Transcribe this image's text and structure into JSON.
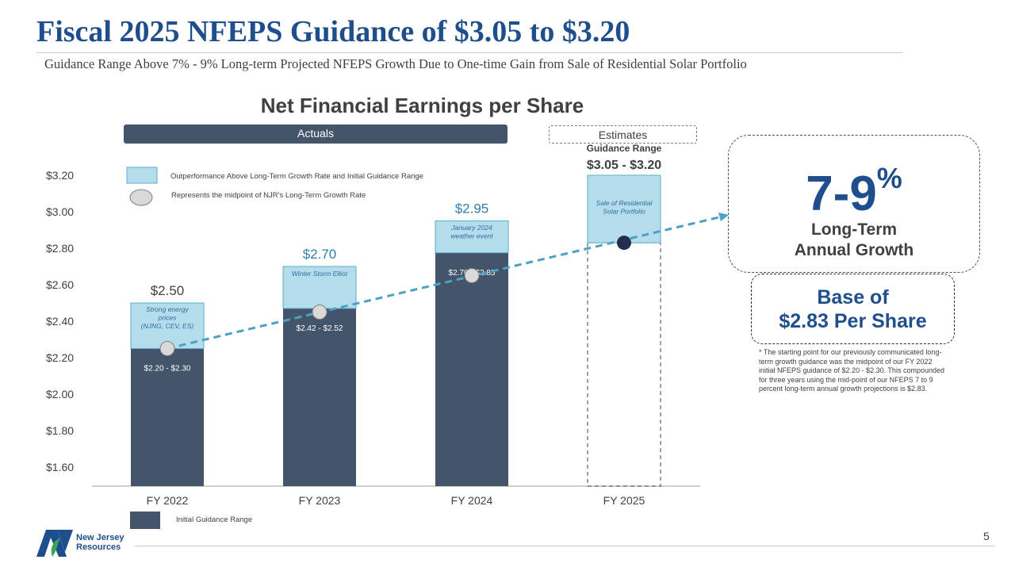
{
  "header": {
    "title": "Fiscal 2025 NFEPS Guidance of $3.05 to $3.20",
    "subtitle": "Guidance Range Above 7% - 9% Long-term Projected NFEPS Growth Due to One-time Gain from Sale of Residential Solar Portfolio"
  },
  "chart_data": {
    "type": "bar",
    "title": "Net Financial Earnings per Share",
    "categories": [
      "FY 2022",
      "FY 2023",
      "FY 2024",
      "FY 2025"
    ],
    "yticks": [
      "$3.20",
      "$3.00",
      "$2.80",
      "$2.60",
      "$2.40",
      "$2.20",
      "$2.00",
      "$1.80",
      "$1.60"
    ],
    "ylim": [
      1.6,
      3.2
    ],
    "period_labels": {
      "actuals": "Actuals",
      "estimates": "Estimates"
    },
    "series": [
      {
        "name": "Initial Guidance Range",
        "values": [
          2.25,
          2.47,
          2.775,
          2.83
        ],
        "range_labels": [
          "$2.20 - $2.30",
          "$2.42 - $2.52",
          "$2.70 - $2.85",
          ""
        ]
      },
      {
        "name": "Outperformance Above Long-Term Growth Rate and Initial Guidance Range",
        "tops": [
          2.5,
          2.7,
          2.95,
          3.2
        ],
        "top_labels": [
          "$2.50",
          "$2.70",
          "$2.95",
          ""
        ],
        "annotations": [
          "Strong energy prices (NJNG, CEV, ES)",
          "Winter Storm Elliot",
          "January 2024 weather event",
          "Sale of Residential Solar Portfolio"
        ]
      },
      {
        "name": "Represents the midpoint of NJR's Long-Term Growth Rate",
        "values": [
          2.25,
          2.45,
          2.65,
          2.83
        ]
      }
    ],
    "guidance": {
      "label": "Guidance Range",
      "value": "$3.05 - $3.20"
    },
    "colors": {
      "bar": "#44546a",
      "outperformance": "#b4dcea",
      "trend": "#4aa3c4",
      "midpoint": "#d9d9d9",
      "fy2025_midpoint": "#1f2f4d"
    }
  },
  "side": {
    "growth_value": "7-9",
    "growth_unit": "%",
    "growth_label_1": "Long-Term",
    "growth_label_2": "Annual Growth",
    "base_line_1": "Base of",
    "base_line_2": "$2.83 Per Share",
    "footnote": "* The starting point for our previously communicated long-term growth guidance was the midpoint of our FY 2022 initial NFEPS guidance of $2.20 - $2.30. This compounded for three years using the mid-point of our NFEPS 7 to 9 percent long-term annual growth projections is $2.83."
  },
  "footer": {
    "page_number": "5",
    "logo_line_1": "New Jersey",
    "logo_line_2": "Resources"
  }
}
